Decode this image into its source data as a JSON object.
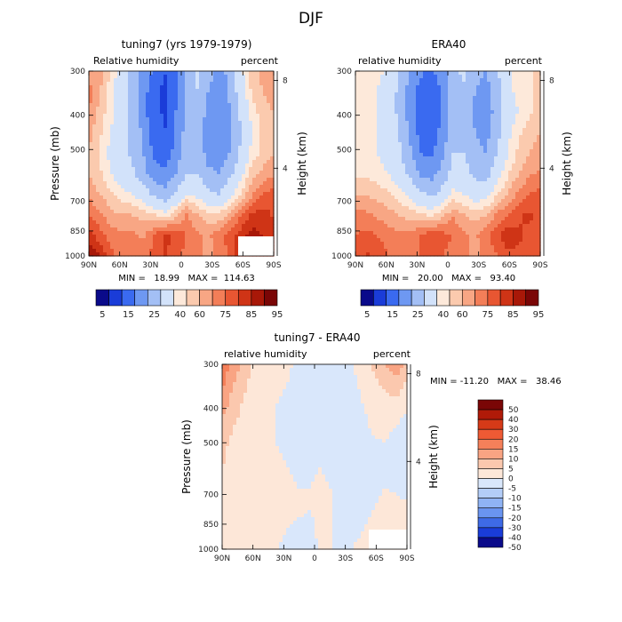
{
  "figure": {
    "title": "DJF"
  },
  "chart_data": [
    {
      "type": "heatmap",
      "title": "tuning7 (yrs 1979-1979)",
      "subtitle_left": "Relative humidity",
      "subtitle_right": "percent",
      "ylabel": "Pressure (mb)",
      "ylabel_right": "Height (km)",
      "x_ticks": [
        "90N",
        "60N",
        "30N",
        "0",
        "30S",
        "60S",
        "90S"
      ],
      "y_ticks": [
        "300",
        "400",
        "500",
        "700",
        "850",
        "1000"
      ],
      "y2_ticks": [
        "8",
        "4"
      ],
      "stats": "MIN =   18.99   MAX =  114.63",
      "colorbar_labels": [
        "5",
        "15",
        "25",
        "40",
        "60",
        "75",
        "85",
        "95"
      ],
      "colors": [
        "#0a0a8a",
        "#1a3cd8",
        "#3a6af0",
        "#6e98f2",
        "#a3bff5",
        "#d2e2fa",
        "#fde9da",
        "#fbcaae",
        "#f8a684",
        "#f37e58",
        "#e85632",
        "#cf3416",
        "#a81808",
        "#7a0606"
      ],
      "field": [
        [
          72,
          74,
          65,
          55,
          45,
          38,
          28,
          20,
          30,
          42,
          52,
          46,
          36,
          44,
          58,
          68,
          72,
          70
        ],
        [
          78,
          70,
          62,
          55,
          45,
          35,
          22,
          18,
          28,
          42,
          50,
          40,
          32,
          42,
          56,
          66,
          70,
          72
        ],
        [
          75,
          68,
          62,
          55,
          46,
          34,
          22,
          19,
          30,
          44,
          48,
          36,
          30,
          40,
          52,
          62,
          68,
          70
        ],
        [
          72,
          66,
          60,
          55,
          48,
          38,
          24,
          20,
          30,
          45,
          46,
          34,
          30,
          38,
          50,
          60,
          66,
          68
        ],
        [
          70,
          64,
          58,
          54,
          48,
          40,
          28,
          24,
          34,
          46,
          46,
          36,
          34,
          40,
          52,
          62,
          66,
          70
        ],
        [
          70,
          66,
          60,
          56,
          52,
          44,
          34,
          32,
          40,
          50,
          50,
          42,
          40,
          48,
          58,
          68,
          72,
          74
        ],
        [
          74,
          70,
          66,
          62,
          60,
          56,
          48,
          44,
          52,
          60,
          58,
          52,
          50,
          58,
          66,
          74,
          80,
          82
        ],
        [
          80,
          76,
          72,
          70,
          70,
          68,
          66,
          62,
          68,
          76,
          70,
          66,
          66,
          72,
          80,
          86,
          88,
          84
        ],
        [
          88,
          82,
          78,
          76,
          76,
          74,
          80,
          86,
          84,
          80,
          76,
          74,
          78,
          82,
          88,
          92,
          90,
          86
        ],
        [
          95,
          90,
          82,
          78,
          78,
          78,
          82,
          86,
          82,
          78,
          76,
          74,
          76,
          82,
          88,
          90,
          88,
          86
        ]
      ]
    },
    {
      "type": "heatmap",
      "title": "ERA40",
      "subtitle_left": "relative humidity",
      "subtitle_right": "percent",
      "ylabel": "",
      "ylabel_right": "Height (km)",
      "x_ticks": [
        "90N",
        "60N",
        "30N",
        "0",
        "30S",
        "60S",
        "90S"
      ],
      "y_ticks": [
        "300",
        "400",
        "500",
        "700",
        "850",
        "1000"
      ],
      "y2_ticks": [
        "8",
        "4"
      ],
      "stats": "MIN =   20.00   MAX =   93.40",
      "colorbar_labels": [
        "5",
        "15",
        "25",
        "40",
        "60",
        "75",
        "85",
        "95"
      ],
      "colors": [
        "#0a0a8a",
        "#1a3cd8",
        "#3a6af0",
        "#6e98f2",
        "#a3bff5",
        "#d2e2fa",
        "#fde9da",
        "#fbcaae",
        "#f8a684",
        "#f37e58",
        "#e85632",
        "#cf3416",
        "#a81808",
        "#7a0606"
      ],
      "field": [
        [
          60,
          62,
          62,
          58,
          50,
          40,
          32,
          28,
          36,
          48,
          52,
          44,
          40,
          48,
          58,
          62,
          64,
          66
        ],
        [
          62,
          62,
          60,
          56,
          48,
          36,
          26,
          22,
          32,
          46,
          48,
          40,
          36,
          46,
          58,
          62,
          64,
          66
        ],
        [
          62,
          62,
          60,
          56,
          48,
          36,
          24,
          20,
          32,
          46,
          46,
          38,
          34,
          44,
          56,
          60,
          64,
          66
        ],
        [
          62,
          62,
          60,
          56,
          50,
          38,
          26,
          24,
          34,
          48,
          48,
          40,
          36,
          46,
          58,
          64,
          68,
          70
        ],
        [
          62,
          62,
          60,
          58,
          52,
          42,
          30,
          28,
          38,
          50,
          50,
          44,
          40,
          50,
          60,
          66,
          70,
          72
        ],
        [
          64,
          64,
          62,
          60,
          56,
          48,
          38,
          36,
          44,
          54,
          54,
          48,
          46,
          56,
          64,
          70,
          74,
          76
        ],
        [
          70,
          70,
          68,
          66,
          62,
          58,
          52,
          48,
          54,
          62,
          60,
          56,
          56,
          64,
          70,
          76,
          80,
          82
        ],
        [
          76,
          76,
          74,
          72,
          70,
          68,
          66,
          64,
          68,
          74,
          70,
          68,
          70,
          76,
          80,
          84,
          86,
          84
        ],
        [
          80,
          82,
          80,
          78,
          76,
          76,
          80,
          84,
          82,
          80,
          76,
          74,
          78,
          84,
          88,
          86,
          84,
          82
        ],
        [
          82,
          86,
          84,
          80,
          78,
          78,
          80,
          82,
          80,
          78,
          76,
          74,
          76,
          80,
          84,
          84,
          82,
          80
        ]
      ]
    },
    {
      "type": "heatmap",
      "title": "tuning7 - ERA40",
      "subtitle_left": "relative humidity",
      "subtitle_right": "percent",
      "ylabel": "Pressure (mb)",
      "ylabel_right": "Height (km)",
      "x_ticks": [
        "90N",
        "60N",
        "30N",
        "0",
        "30S",
        "60S",
        "90S"
      ],
      "y_ticks": [
        "300",
        "400",
        "500",
        "700",
        "850",
        "1000"
      ],
      "y2_ticks": [
        "8",
        "4"
      ],
      "stats": "MIN = -11.20   MAX =   38.46",
      "colorbar_labels": [
        "50",
        "40",
        "30",
        "20",
        "15",
        "10",
        "5",
        "0",
        "-5",
        "-10",
        "-15",
        "-20",
        "-30",
        "-40",
        "-50"
      ],
      "colors": [
        "#7a0606",
        "#b01a08",
        "#d63a18",
        "#ee5a34",
        "#f5805a",
        "#f9a483",
        "#fbc8ae",
        "#fde7d8",
        "#d9e7fb",
        "#b3cdf8",
        "#8fb3f4",
        "#6a94f0",
        "#3e6ae6",
        "#1a3cd8",
        "#0a0a8a"
      ],
      "field": [
        [
          18,
          14,
          8,
          4,
          3,
          2,
          1,
          -1,
          -2,
          0,
          -1,
          -2,
          0,
          2,
          6,
          10,
          14,
          8
        ],
        [
          16,
          10,
          6,
          3,
          2,
          1,
          0,
          -2,
          -3,
          0,
          -2,
          -3,
          -1,
          1,
          4,
          6,
          8,
          4
        ],
        [
          12,
          8,
          4,
          2,
          1,
          0,
          -1,
          -2,
          -2,
          0,
          -1,
          -2,
          -2,
          0,
          2,
          3,
          3,
          1
        ],
        [
          8,
          5,
          3,
          2,
          1,
          0,
          -1,
          -1,
          -2,
          0,
          -1,
          -2,
          -2,
          -1,
          1,
          1,
          0,
          -2
        ],
        [
          6,
          4,
          3,
          2,
          1,
          0,
          -1,
          -1,
          -2,
          0,
          -1,
          -2,
          -3,
          -2,
          -1,
          0,
          -2,
          -3
        ],
        [
          5,
          4,
          3,
          2,
          1,
          1,
          0,
          -1,
          -1,
          0,
          -1,
          -2,
          -3,
          -3,
          -1,
          -1,
          -3,
          -4
        ],
        [
          4,
          3,
          3,
          2,
          2,
          1,
          1,
          0,
          0,
          1,
          0,
          -1,
          -2,
          -2,
          -1,
          0,
          -1,
          -2
        ],
        [
          3,
          3,
          2,
          2,
          2,
          1,
          1,
          1,
          0,
          1,
          0,
          -1,
          -1,
          -1,
          0,
          1,
          2,
          1
        ],
        [
          2,
          2,
          2,
          1,
          1,
          1,
          0,
          -1,
          -1,
          1,
          0,
          -1,
          -1,
          0,
          1,
          2,
          3,
          2
        ],
        [
          2,
          1,
          1,
          1,
          1,
          0,
          -1,
          -2,
          -1,
          0,
          0,
          -1,
          0,
          1,
          2,
          3,
          2,
          1
        ]
      ],
      "thresholds": [
        50,
        40,
        30,
        20,
        15,
        10,
        5,
        0,
        -5,
        -10,
        -15,
        -20,
        -30,
        -40,
        -50
      ]
    }
  ]
}
